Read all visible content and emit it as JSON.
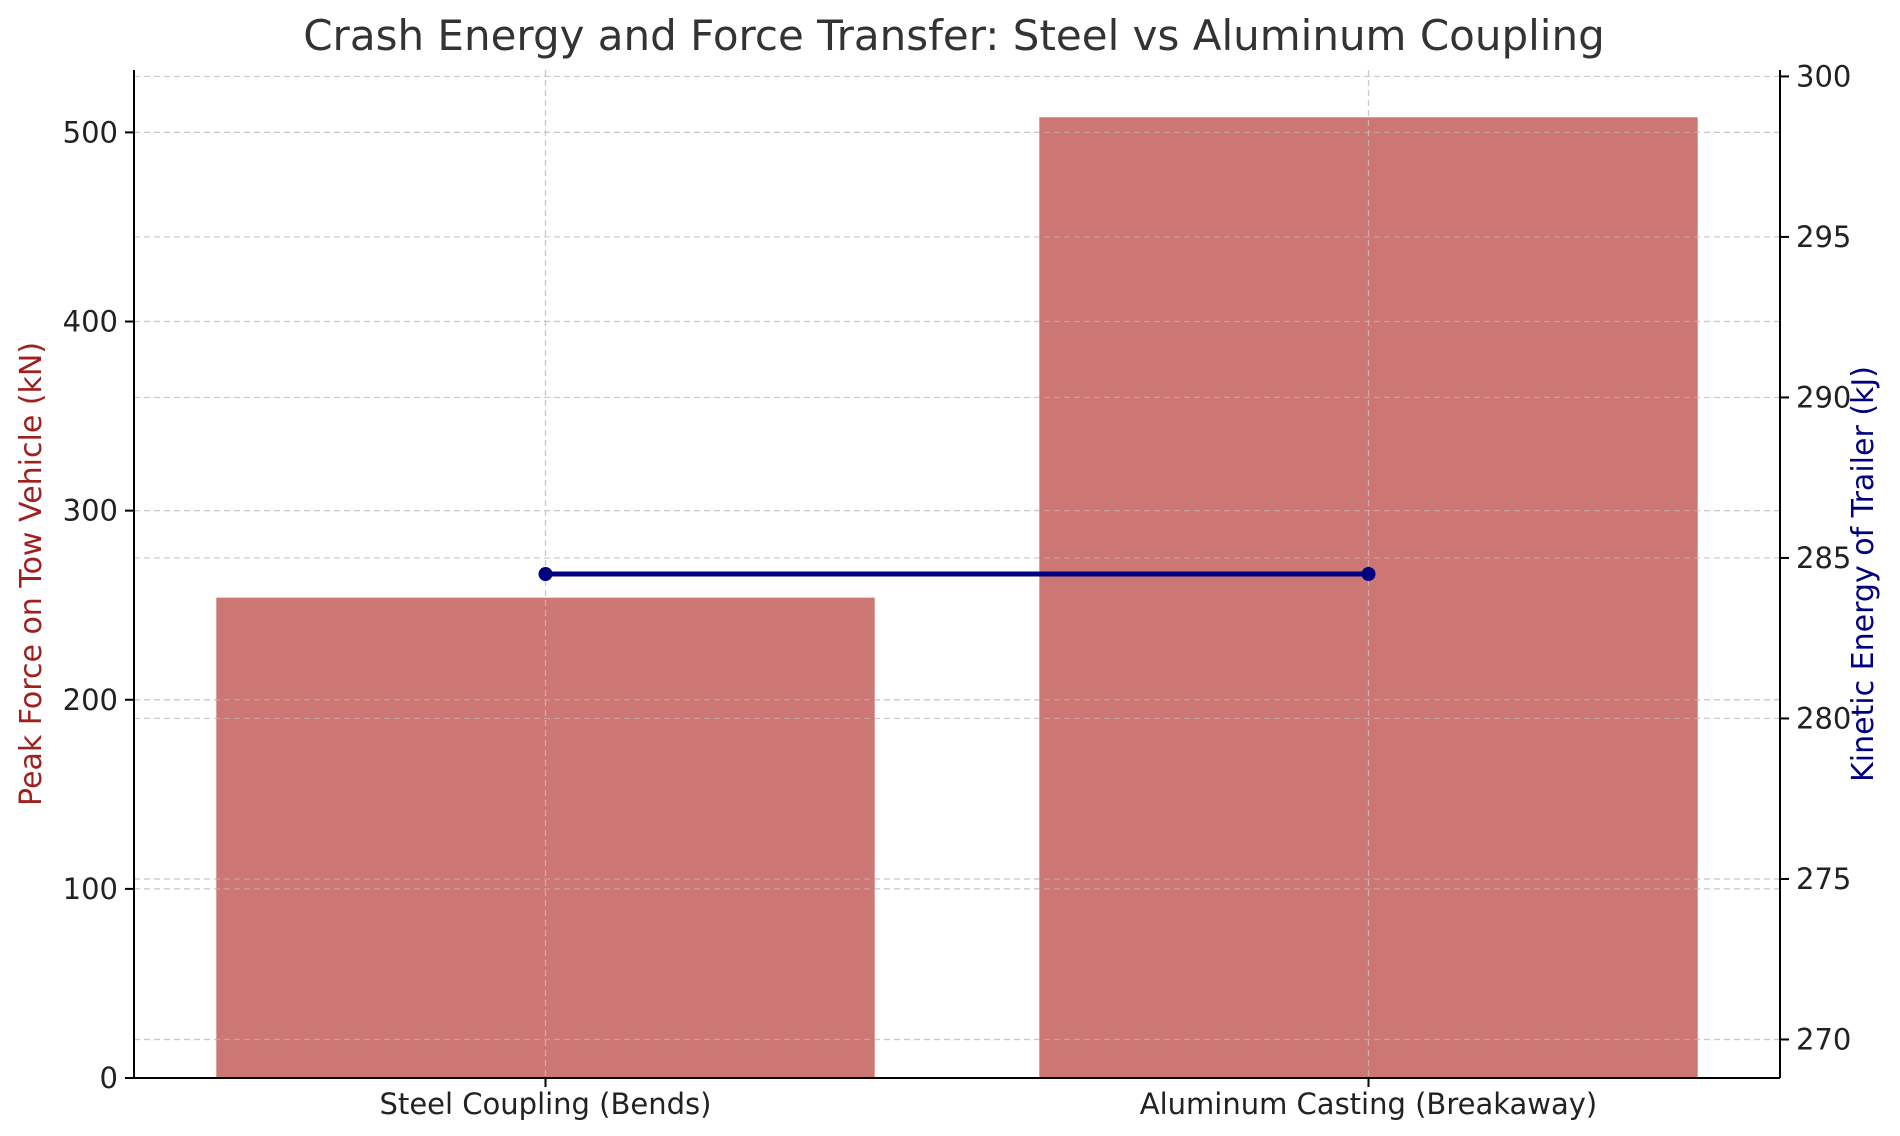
{
  "chart_data": {
    "type": "bar",
    "title": "Crash Energy and Force Transfer: Steel vs Aluminum Coupling",
    "categories": [
      "Steel Coupling (Bends)",
      "Aluminum Casting (Breakaway)"
    ],
    "ylabel": "Peak Force on Tow Vehicle (kN)",
    "y2label": "Kinetic Energy of Trailer (kJ)",
    "ylim": [
      0,
      533
    ],
    "y2lim": [
      268.8,
      300.2
    ],
    "yticks": [
      0,
      100,
      200,
      300,
      400,
      500
    ],
    "y2ticks": [
      270,
      275,
      280,
      285,
      290,
      295,
      300
    ],
    "grid": true,
    "series": [
      {
        "type": "bar",
        "axis": "left",
        "values": [
          254,
          508
        ],
        "color": "#cd7775"
      },
      {
        "type": "line",
        "axis": "right",
        "values": [
          284.5,
          284.5
        ],
        "color": "#000080",
        "marker": "circle"
      }
    ],
    "colors": {
      "left_axis_label": "#a02020",
      "right_axis_label": "#000080"
    }
  }
}
